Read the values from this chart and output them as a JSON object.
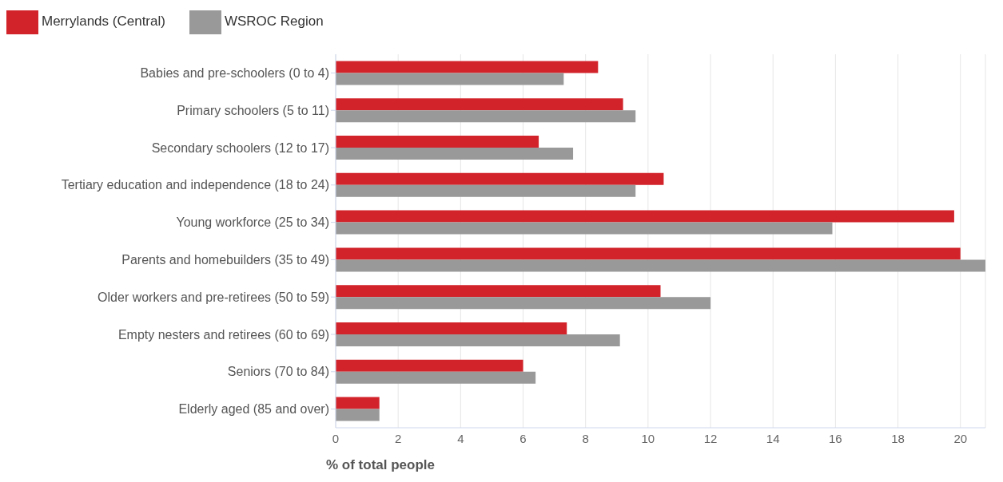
{
  "chart_data": {
    "type": "bar",
    "orientation": "horizontal",
    "xlabel": "% of total people",
    "categories": [
      "Babies and pre-schoolers (0 to 4)",
      "Primary schoolers (5 to 11)",
      "Secondary schoolers (12 to 17)",
      "Tertiary education and independence (18 to 24)",
      "Young workforce (25 to 34)",
      "Parents and homebuilders (35 to 49)",
      "Older workers and pre-retirees (50 to 59)",
      "Empty nesters and retirees (60 to 69)",
      "Seniors (70 to 84)",
      "Elderly aged (85 and over)"
    ],
    "series": [
      {
        "name": "Merrylands (Central)",
        "color": "#d2232a",
        "values": [
          8.4,
          9.2,
          6.5,
          10.5,
          19.8,
          20.0,
          10.4,
          7.4,
          6.0,
          1.4
        ]
      },
      {
        "name": "WSROC Region",
        "color": "#999999",
        "values": [
          7.3,
          9.6,
          7.6,
          9.6,
          15.9,
          20.8,
          12.0,
          9.1,
          6.4,
          1.4
        ]
      }
    ],
    "xlim": [
      0,
      20.8
    ],
    "xticks": [
      0,
      2,
      4,
      6,
      8,
      10,
      12,
      14,
      16,
      18,
      20
    ],
    "grid": "x",
    "legend": "top left"
  }
}
